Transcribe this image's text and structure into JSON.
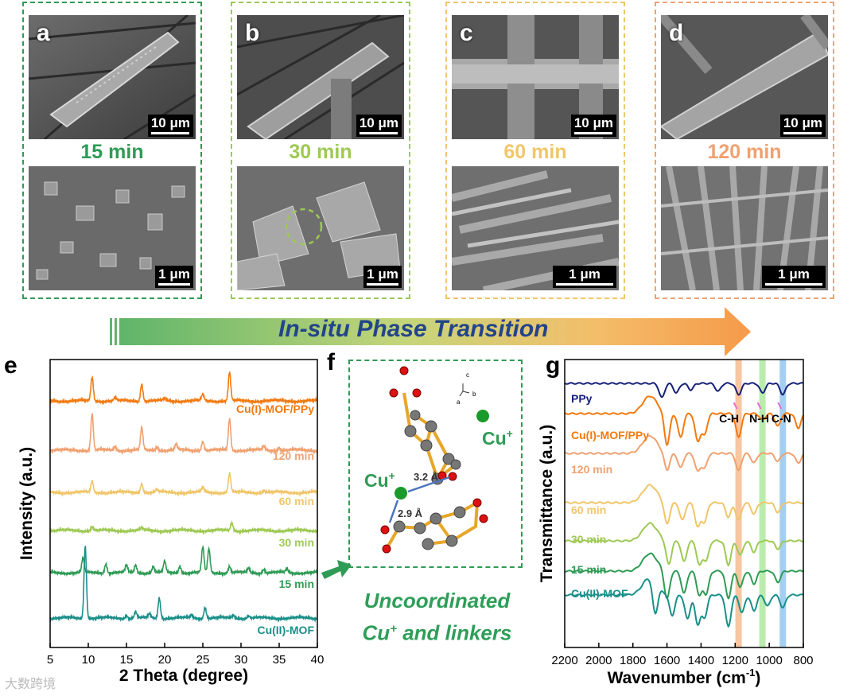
{
  "colors": {
    "p15": "#2f9b55",
    "p30": "#9ec954",
    "p60": "#f0c66a",
    "p120": "#f0a170",
    "ppy": "#17207a",
    "mof_ppy": "#f27a10",
    "mof": "#1b8f8a"
  },
  "panels": [
    {
      "letter": "a",
      "time": "15 min",
      "scale_top": "10 μm",
      "scale_bot": "1 μm"
    },
    {
      "letter": "b",
      "time": "30 min",
      "scale_top": "10 μm",
      "scale_bot": "1 μm"
    },
    {
      "letter": "c",
      "time": "60 min",
      "scale_top": "10 μm",
      "scale_bot": "1 μm"
    },
    {
      "letter": "d",
      "time": "120 min",
      "scale_top": "10 μm",
      "scale_bot": "1 μm"
    }
  ],
  "arrow": {
    "text": "In-situ Phase Transition"
  },
  "panel_letters": {
    "e": "e",
    "f": "f",
    "g": "g"
  },
  "structure": {
    "cu_label": "Cu",
    "cu_sup": "+",
    "d1": "3.2 Å",
    "d2": "2.9 Å",
    "axis_c": "c",
    "axis_b": "b",
    "axis_a": "a"
  },
  "uncoord": {
    "line1": "Uncoordinated",
    "line2a": "Cu",
    "line2sup": "+",
    "line2b": " and linkers"
  },
  "watermark": "大数跨境",
  "chart_data": [
    {
      "type": "line",
      "title": "",
      "xlabel": "2 Theta (degree)",
      "ylabel": "Intensity (a.u.)",
      "xlim": [
        5,
        40
      ],
      "xticks": [
        5,
        10,
        15,
        20,
        25,
        30,
        35,
        40
      ],
      "series": [
        {
          "name": "Cu(I)-MOF/PPy",
          "peaks": [
            [
              10.5,
              30
            ],
            [
              13.5,
              4
            ],
            [
              17,
              22
            ],
            [
              20,
              3
            ],
            [
              25,
              8
            ],
            [
              28.5,
              36
            ]
          ]
        },
        {
          "name": "120 min",
          "peaks": [
            [
              10.5,
              46
            ],
            [
              13.5,
              5
            ],
            [
              17,
              28
            ],
            [
              19,
              5
            ],
            [
              21.5,
              7
            ],
            [
              25,
              12
            ],
            [
              28.5,
              40
            ],
            [
              33,
              5
            ],
            [
              35,
              4
            ]
          ]
        },
        {
          "name": "60 min",
          "peaks": [
            [
              10.5,
              14
            ],
            [
              17,
              12
            ],
            [
              19,
              3
            ],
            [
              25,
              6
            ],
            [
              28.5,
              24
            ],
            [
              33,
              3
            ]
          ]
        },
        {
          "name": "30 min",
          "peaks": [
            [
              10.5,
              5
            ],
            [
              17,
              3
            ],
            [
              28.8,
              10
            ]
          ]
        },
        {
          "name": "15 min",
          "peaks": [
            [
              9.3,
              18
            ],
            [
              12.3,
              12
            ],
            [
              15,
              9
            ],
            [
              16.2,
              10
            ],
            [
              18.5,
              8
            ],
            [
              20,
              14
            ],
            [
              22,
              9
            ],
            [
              25,
              32
            ],
            [
              25.8,
              30
            ],
            [
              28.5,
              8
            ],
            [
              31,
              6
            ],
            [
              33,
              5
            ],
            [
              36,
              5
            ]
          ]
        },
        {
          "name": "Cu(II)-MOF",
          "peaks": [
            [
              9.6,
              92
            ],
            [
              15,
              4
            ],
            [
              16.2,
              8
            ],
            [
              18,
              5
            ],
            [
              19.3,
              26
            ],
            [
              23.5,
              4
            ],
            [
              25.3,
              14
            ],
            [
              29,
              4
            ],
            [
              31,
              3
            ]
          ]
        }
      ]
    },
    {
      "type": "line",
      "title": "",
      "xlabel": "Wavenumber (cm",
      "xlabel_sup": "-1",
      "xlabel_end": ")",
      "ylabel": "Transmittance (a.u.)",
      "xlim": [
        2200,
        800
      ],
      "xticks": [
        2200,
        2000,
        1800,
        1600,
        1400,
        1200,
        1000,
        800
      ],
      "highlights": [
        {
          "label": "C-H",
          "center": 1180
        },
        {
          "label": "N-H",
          "center": 1040
        },
        {
          "label": "C-N",
          "center": 920
        }
      ],
      "series": [
        {
          "name": "PPy",
          "dips": [
            [
              1630,
              18
            ],
            [
              1545,
              12
            ],
            [
              1460,
              8
            ],
            [
              1300,
              10
            ],
            [
              1180,
              14
            ],
            [
              1040,
              12
            ],
            [
              920,
              14
            ]
          ]
        },
        {
          "name": "Cu(I)-MOF/PPy",
          "dips": [
            [
              1600,
              40
            ],
            [
              1520,
              30
            ],
            [
              1420,
              34
            ],
            [
              1380,
              26
            ],
            [
              1180,
              30
            ],
            [
              1040,
              8
            ],
            [
              950,
              16
            ],
            [
              830,
              18
            ]
          ]
        },
        {
          "name": "120 min",
          "dips": [
            [
              1600,
              22
            ],
            [
              1520,
              18
            ],
            [
              1420,
              22
            ],
            [
              1380,
              18
            ],
            [
              1180,
              22
            ],
            [
              1090,
              12
            ],
            [
              950,
              10
            ],
            [
              830,
              12
            ]
          ]
        },
        {
          "name": "60 min",
          "dips": [
            [
              1600,
              28
            ],
            [
              1510,
              22
            ],
            [
              1420,
              30
            ],
            [
              1380,
              24
            ],
            [
              1240,
              18
            ],
            [
              1180,
              22
            ],
            [
              1090,
              14
            ],
            [
              950,
              12
            ]
          ]
        },
        {
          "name": "30 min",
          "dips": [
            [
              1590,
              30
            ],
            [
              1500,
              26
            ],
            [
              1410,
              30
            ],
            [
              1370,
              24
            ],
            [
              1240,
              30
            ],
            [
              1170,
              18
            ],
            [
              1090,
              14
            ],
            [
              950,
              10
            ]
          ]
        },
        {
          "name": "15 min",
          "dips": [
            [
              1600,
              36
            ],
            [
              1500,
              28
            ],
            [
              1410,
              30
            ],
            [
              1370,
              28
            ],
            [
              1240,
              34
            ],
            [
              1170,
              20
            ],
            [
              1090,
              16
            ],
            [
              950,
              14
            ]
          ]
        },
        {
          "name": "Cu(II)-MOF",
          "dips": [
            [
              1670,
              40
            ],
            [
              1570,
              26
            ],
            [
              1480,
              30
            ],
            [
              1420,
              36
            ],
            [
              1380,
              28
            ],
            [
              1240,
              40
            ],
            [
              1160,
              22
            ],
            [
              1090,
              20
            ],
            [
              1010,
              14
            ],
            [
              920,
              16
            ]
          ]
        }
      ]
    }
  ]
}
